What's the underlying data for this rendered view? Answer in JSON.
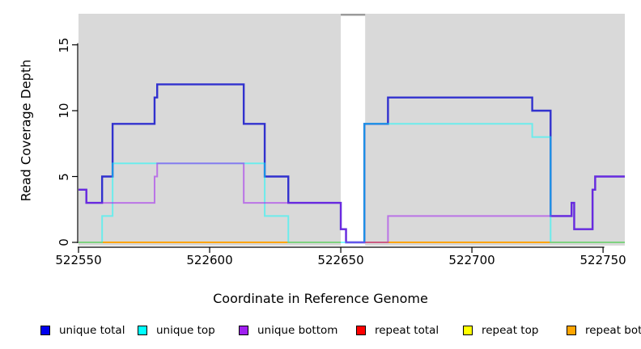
{
  "chart_data": {
    "type": "step-line",
    "title": "",
    "xlabel": "Coordinate in Reference Genome",
    "ylabel": "Read Coverage Depth",
    "xlim": [
      522550,
      522758.3
    ],
    "ylim": [
      0,
      17.4
    ],
    "x_ticks": [
      522550,
      522600,
      522650,
      522700,
      522750
    ],
    "y_ticks": [
      0,
      5,
      10,
      15
    ],
    "grid": false,
    "panel_color": "#D9D9D9",
    "gap_region": {
      "x0": 522650,
      "x1": 522659.3,
      "fill": "#FFFFFF",
      "cap_color": "#9B9B9B"
    },
    "legend_position": "bottom",
    "series": [
      {
        "name": "repeat total",
        "color": "#FF0000",
        "opacity": 1,
        "width": 2,
        "points": [
          [
            522550,
            0
          ]
        ]
      },
      {
        "name": "repeat top",
        "color": "#FFFF00",
        "opacity": 1,
        "width": 2,
        "points": [
          [
            522550,
            0
          ]
        ]
      },
      {
        "name": "repeat bottom",
        "color": "#FFA500",
        "opacity": 1,
        "width": 2,
        "points": [
          [
            522550,
            0
          ]
        ]
      },
      {
        "name": "unique total",
        "color": "#3131CE",
        "opacity": 1,
        "width": 2.4,
        "points": [
          [
            522550,
            4
          ],
          [
            522553,
            3
          ],
          [
            522559,
            5
          ],
          [
            522563,
            9
          ],
          [
            522579,
            11
          ],
          [
            522580,
            12
          ],
          [
            522613,
            9
          ],
          [
            522621,
            5
          ],
          [
            522630,
            3
          ],
          [
            522650,
            1
          ],
          [
            522652,
            0
          ],
          [
            522659,
            9
          ],
          [
            522668,
            11
          ],
          [
            522723,
            10
          ],
          [
            522730,
            2
          ],
          [
            522738,
            3
          ],
          [
            522739,
            1
          ],
          [
            522746,
            4
          ],
          [
            522747,
            5
          ]
        ]
      },
      {
        "name": "unique top",
        "color": "#00FFFF",
        "opacity": 0.5,
        "width": 2,
        "points": [
          [
            522550,
            0
          ],
          [
            522559,
            2
          ],
          [
            522563,
            6
          ],
          [
            522621,
            2
          ],
          [
            522630,
            0
          ],
          [
            522659,
            9
          ],
          [
            522723,
            8
          ],
          [
            522730,
            0
          ]
        ]
      },
      {
        "name": "unique bottom",
        "color": "#A020F0",
        "opacity": 0.55,
        "width": 2,
        "points": [
          [
            522550,
            4
          ],
          [
            522553,
            3
          ],
          [
            522579,
            5
          ],
          [
            522580,
            6
          ],
          [
            522613,
            3
          ],
          [
            522650,
            1
          ],
          [
            522652,
            0
          ],
          [
            522668,
            2
          ],
          [
            522738,
            3
          ],
          [
            522739,
            1
          ],
          [
            522746,
            4
          ],
          [
            522747,
            5
          ]
        ]
      }
    ],
    "legend": [
      {
        "label": "unique total",
        "color": "#0000EE"
      },
      {
        "label": "unique top",
        "color": "#00FFFF"
      },
      {
        "label": "unique bottom",
        "color": "#A020F0"
      },
      {
        "label": "repeat total",
        "color": "#FF0000"
      },
      {
        "label": "repeat top",
        "color": "#FFFF00"
      },
      {
        "label": "repeat bottom",
        "color": "#FFA500"
      }
    ]
  }
}
